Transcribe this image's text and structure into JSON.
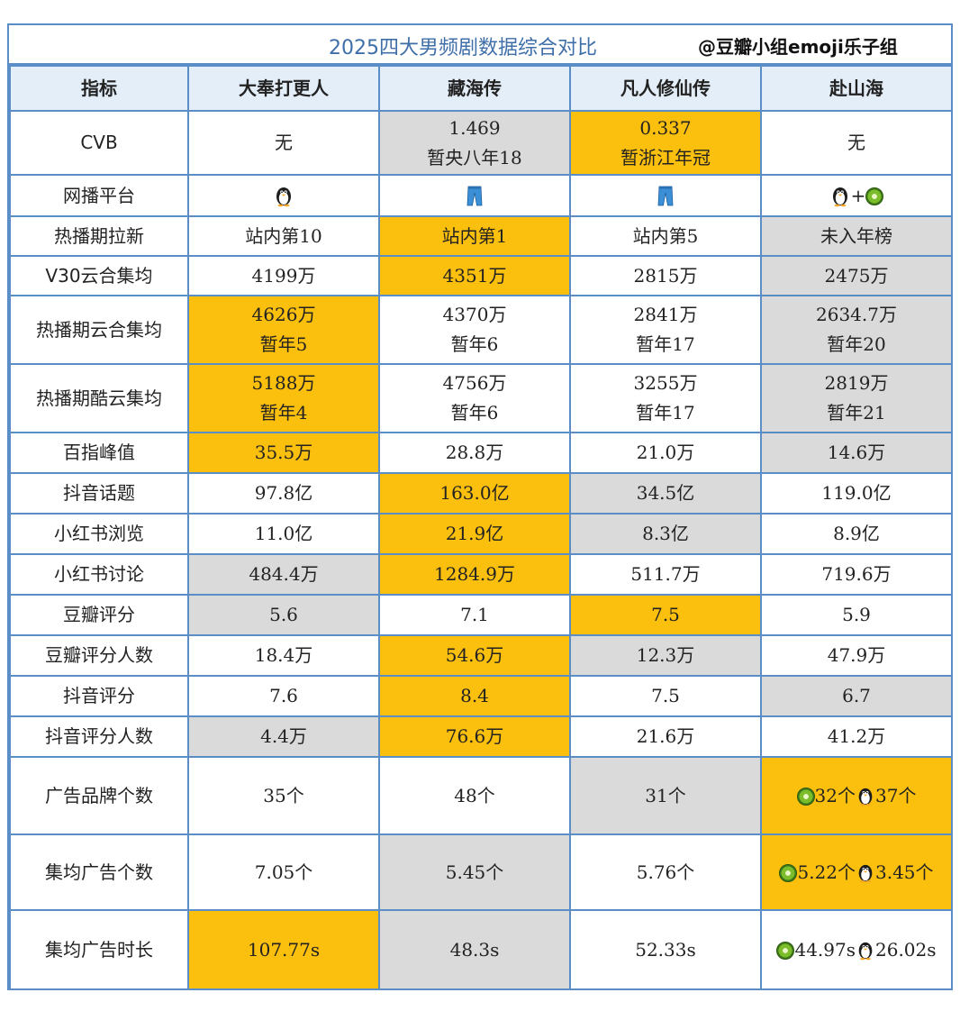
{
  "title": "2025四大男频剧数据综合对比",
  "credit": "@豆瓣小组emoji乐子组",
  "header": [
    "指标",
    "大奉打更人",
    "藏海传",
    "凡人修仙传",
    "赴山海"
  ],
  "platform_icons": {
    "dafeng": "penguin-icon",
    "canghai": "jeans-icon",
    "fanren": "jeans-icon",
    "fushanhai": [
      "penguin-icon",
      "kiwi-icon"
    ],
    "plus": "+"
  },
  "rows": {
    "cvb": {
      "label": "CVB",
      "dafeng": "无",
      "canghai": [
        "1.469",
        "暂央八年18"
      ],
      "fanren": [
        "0.337",
        "暂浙江年冠"
      ],
      "fushanhai": "无"
    },
    "platform": {
      "label": "网播平台"
    },
    "laxin": {
      "label": "热播期拉新",
      "dafeng": "站内第10",
      "canghai": "站内第1",
      "fanren": "站内第5",
      "fushanhai": "未入年榜"
    },
    "v30": {
      "label": "V30云合集均",
      "dafeng": "4199万",
      "canghai": "4351万",
      "fanren": "2815万",
      "fushanhai": "2475万"
    },
    "yunhe": {
      "label": "热播期云合集均",
      "dafeng": [
        "4626万",
        "暂年5"
      ],
      "canghai": [
        "4370万",
        "暂年6"
      ],
      "fanren": [
        "2841万",
        "暂年17"
      ],
      "fushanhai": [
        "2634.7万",
        "暂年20"
      ]
    },
    "kuyun": {
      "label": "热播期酷云集均",
      "dafeng": [
        "5188万",
        "暂年4"
      ],
      "canghai": [
        "4756万",
        "暂年6"
      ],
      "fanren": [
        "3255万",
        "暂年17"
      ],
      "fushanhai": [
        "2819万",
        "暂年21"
      ]
    },
    "baizhi": {
      "label": "百指峰值",
      "dafeng": "35.5万",
      "canghai": "28.8万",
      "fanren": "21.0万",
      "fushanhai": "14.6万"
    },
    "douyin_topic": {
      "label": "抖音话题",
      "dafeng": "97.8亿",
      "canghai": "163.0亿",
      "fanren": "34.5亿",
      "fushanhai": "119.0亿"
    },
    "xhs_view": {
      "label": "小红书浏览",
      "dafeng": "11.0亿",
      "canghai": "21.9亿",
      "fanren": "8.3亿",
      "fushanhai": "8.9亿"
    },
    "xhs_discuss": {
      "label": "小红书讨论",
      "dafeng": "484.4万",
      "canghai": "1284.9万",
      "fanren": "511.7万",
      "fushanhai": "719.6万"
    },
    "douban_score": {
      "label": "豆瓣评分",
      "dafeng": "5.6",
      "canghai": "7.1",
      "fanren": "7.5",
      "fushanhai": "5.9"
    },
    "douban_count": {
      "label": "豆瓣评分人数",
      "dafeng": "18.4万",
      "canghai": "54.6万",
      "fanren": "12.3万",
      "fushanhai": "47.9万"
    },
    "douyin_score": {
      "label": "抖音评分",
      "dafeng": "7.6",
      "canghai": "8.4",
      "fanren": "7.5",
      "fushanhai": "6.7"
    },
    "douyin_count": {
      "label": "抖音评分人数",
      "dafeng": "4.4万",
      "canghai": "76.6万",
      "fanren": "21.6万",
      "fushanhai": "41.2万"
    },
    "ad_brands": {
      "label": "广告品牌个数",
      "dafeng": "35个",
      "canghai": "48个",
      "fanren": "31个",
      "fushanhai": [
        "32个",
        "37个"
      ]
    },
    "ad_count": {
      "label": "集均广告个数",
      "dafeng": "7.05个",
      "canghai": "5.45个",
      "fanren": "5.76个",
      "fushanhai": [
        "5.22个",
        "3.45个"
      ]
    },
    "ad_time": {
      "label": "集均广告时长",
      "dafeng": "107.77s",
      "canghai": "48.3s",
      "fanren": "52.33s",
      "fushanhai": [
        "44.97s",
        "26.02s"
      ]
    }
  },
  "colors": {
    "highlight": "#fbbf0d",
    "gray": "#dadada",
    "border": "#5b8ec6",
    "header_bg": "#e4eef8",
    "title": "#3f6fa8"
  }
}
